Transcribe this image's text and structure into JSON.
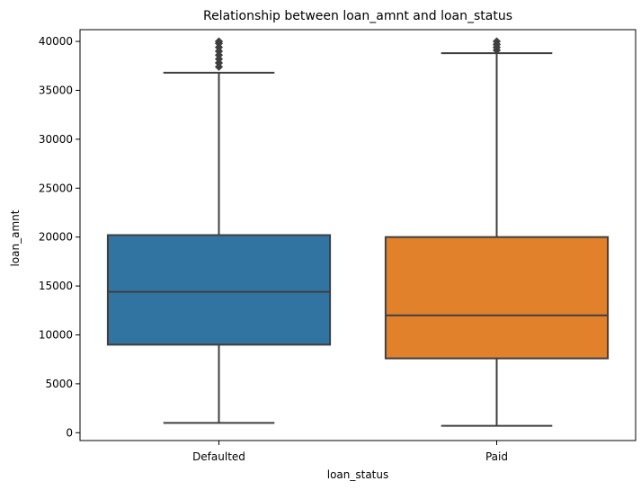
{
  "chart_data": {
    "type": "boxplot",
    "title": "Relationship between loan_amnt and loan_status",
    "xlabel": "loan_status",
    "ylabel": "loan_amnt",
    "ylim": [
      -800,
      41200
    ],
    "yticks": [
      0,
      5000,
      10000,
      15000,
      20000,
      25000,
      30000,
      35000,
      40000
    ],
    "grid": false,
    "categories": [
      "Defaulted",
      "Paid"
    ],
    "series": [
      {
        "category": "Defaulted",
        "color": "#3274a1",
        "whisker_low": 1000,
        "q1": 9000,
        "median": 14400,
        "q3": 20200,
        "whisker_high": 36800,
        "outliers": [
          37400,
          37800,
          38200,
          38600,
          39000,
          39400,
          39800,
          40000
        ]
      },
      {
        "category": "Paid",
        "color": "#e1812c",
        "whisker_low": 700,
        "q1": 7600,
        "median": 12000,
        "q3": 20000,
        "whisker_high": 38800,
        "outliers": [
          39100,
          39400,
          39700,
          40000
        ]
      }
    ]
  }
}
